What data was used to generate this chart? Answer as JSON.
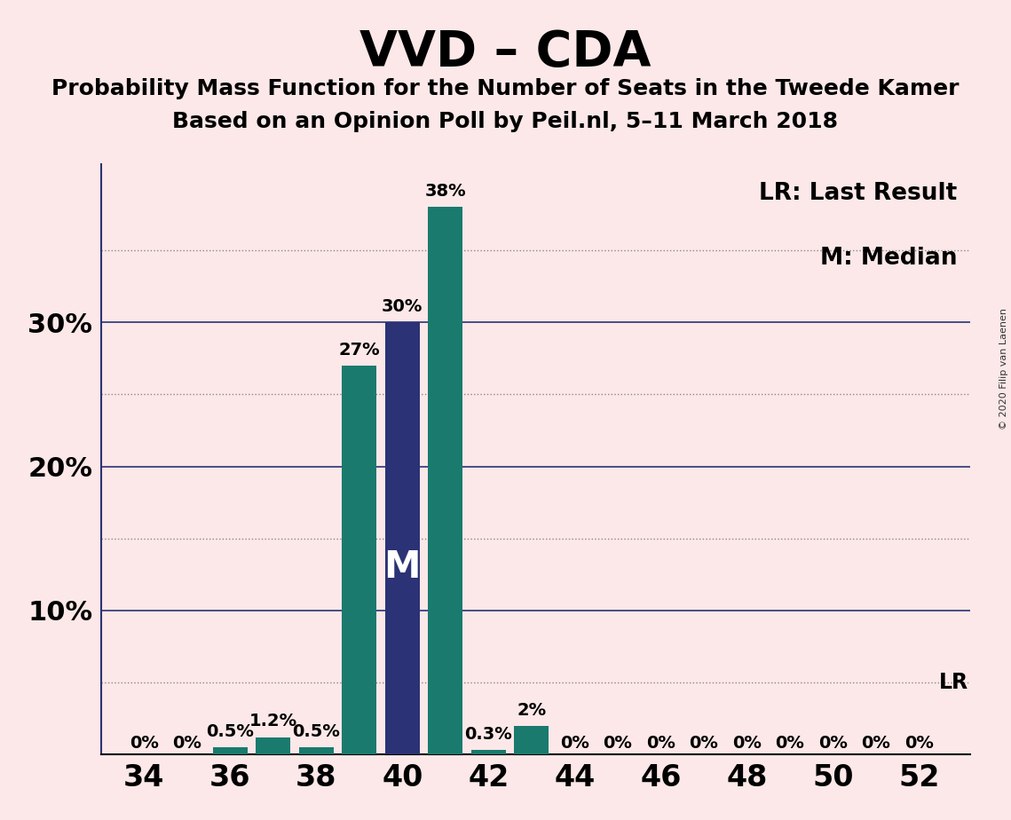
{
  "title": "VVD – CDA",
  "subtitle1": "Probability Mass Function for the Number of Seats in the Tweede Kamer",
  "subtitle2": "Based on an Opinion Poll by Peil.nl, 5–11 March 2018",
  "copyright": "© 2020 Filip van Laenen",
  "legend_lr": "LR: Last Result",
  "legend_m": "M: Median",
  "seats": [
    34,
    35,
    36,
    37,
    38,
    39,
    40,
    41,
    42,
    43,
    44,
    45,
    46,
    47,
    48,
    49,
    50,
    51,
    52
  ],
  "probabilities": [
    0.0,
    0.0,
    0.5,
    1.2,
    0.5,
    27.0,
    30.0,
    38.0,
    0.3,
    2.0,
    0.0,
    0.0,
    0.0,
    0.0,
    0.0,
    0.0,
    0.0,
    0.0,
    0.0
  ],
  "labels": [
    "0%",
    "0%",
    "0.5%",
    "1.2%",
    "0.5%",
    "27%",
    "30%",
    "38%",
    "0.3%",
    "2%",
    "0%",
    "0%",
    "0%",
    "0%",
    "0%",
    "0%",
    "0%",
    "0%",
    "0%"
  ],
  "median_seat": 40,
  "last_result_pct": 5.0,
  "bar_color_teal": "#1a7a6e",
  "bar_color_navy": "#2b3275",
  "background_color": "#fce8e8",
  "solid_line_color": "#2b3275",
  "dotted_line_color": "#888888",
  "solid_yticks": [
    10,
    20,
    30
  ],
  "dotted_yticks": [
    5,
    15,
    25,
    35
  ],
  "ylim": [
    0,
    41
  ],
  "ylabel_ticks": [
    10,
    20,
    30
  ],
  "xticks": [
    34,
    36,
    38,
    40,
    42,
    44,
    46,
    48,
    50,
    52
  ],
  "xlim": [
    33.0,
    53.2
  ],
  "bar_width": 0.8,
  "title_fontsize": 40,
  "subtitle_fontsize": 18,
  "ytick_fontsize": 22,
  "xtick_fontsize": 24,
  "label_fontsize": 14,
  "legend_fontsize": 19,
  "M_fontsize": 30
}
